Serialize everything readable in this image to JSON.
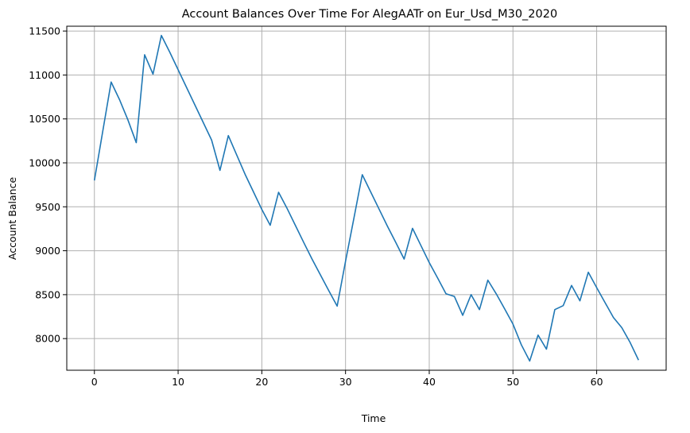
{
  "chart_data": {
    "type": "line",
    "title": "Account Balances Over Time For AlegAATr on Eur_Usd_M30_2020",
    "xlabel": "Time",
    "ylabel": "Account Balance",
    "xlim": [
      -3.3,
      68.3
    ],
    "ylim": [
      7640,
      11555
    ],
    "xticks": [
      0,
      10,
      20,
      30,
      40,
      50,
      60
    ],
    "yticks": [
      8000,
      8500,
      9000,
      9500,
      10000,
      10500,
      11000,
      11500
    ],
    "grid": true,
    "line_color": "#1f77b4",
    "x": [
      0,
      1,
      2,
      3,
      4,
      5,
      6,
      7,
      8,
      9,
      10,
      11,
      12,
      13,
      14,
      15,
      16,
      17,
      18,
      19,
      20,
      21,
      22,
      23,
      24,
      25,
      26,
      27,
      28,
      29,
      30,
      31,
      32,
      33,
      34,
      35,
      36,
      37,
      38,
      39,
      40,
      41,
      42,
      43,
      44,
      45,
      46,
      47,
      48,
      49,
      50,
      51,
      52,
      53,
      54,
      55,
      56,
      57,
      58,
      59,
      60,
      61,
      62,
      63,
      64,
      65
    ],
    "y": [
      9800,
      10360,
      10920,
      10720,
      10490,
      10230,
      11230,
      11010,
      11450,
      11260,
      11060,
      10860,
      10660,
      10460,
      10260,
      9915,
      10310,
      10090,
      9870,
      9670,
      9470,
      9290,
      9665,
      9485,
      9290,
      9095,
      8905,
      8725,
      8545,
      8370,
      8880,
      9370,
      9865,
      9670,
      9475,
      9280,
      9095,
      8905,
      9255,
      9060,
      8865,
      8690,
      8510,
      8480,
      8265,
      8500,
      8330,
      8665,
      8510,
      8340,
      8165,
      7930,
      7745,
      8040,
      7880,
      8330,
      8375,
      8605,
      8430,
      8755,
      8580,
      8410,
      8240,
      8125,
      7955,
      7755
    ]
  }
}
